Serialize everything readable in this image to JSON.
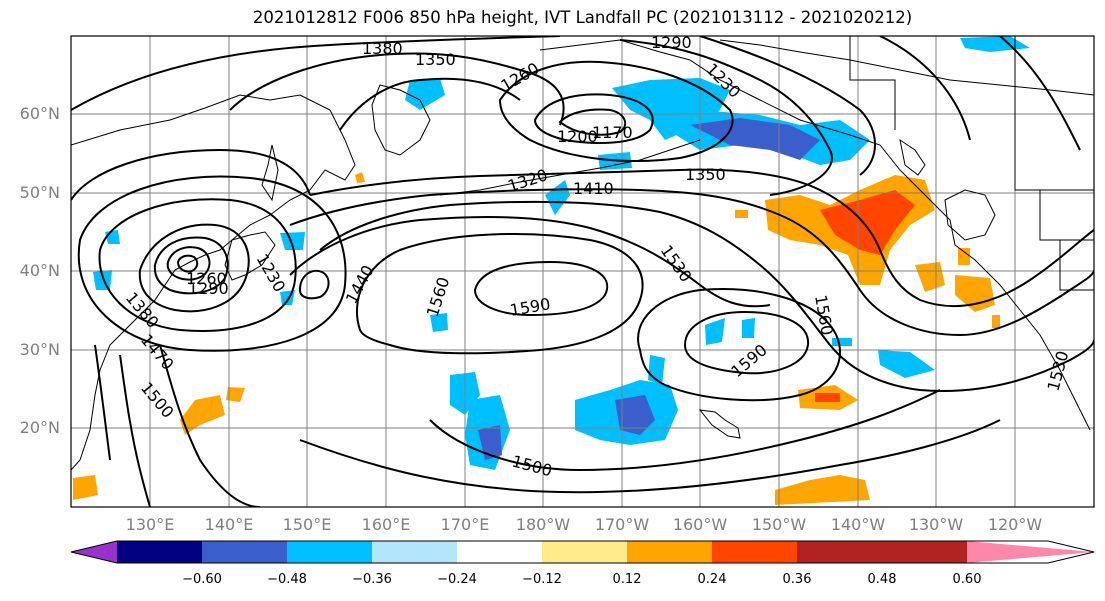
{
  "title": "2021012812 F006 850 hPa height, IVT Landfall PC (2021013112 - 2021020212)",
  "map": {
    "lat_labels": [
      "60°N",
      "50°N",
      "40°N",
      "30°N",
      "20°N"
    ],
    "lon_labels": [
      "130°E",
      "140°E",
      "150°E",
      "160°E",
      "170°E",
      "180°W",
      "170°W",
      "160°W",
      "150°W",
      "140°W",
      "130°W",
      "120°W"
    ],
    "contour_labels": [
      "1380",
      "1350",
      "1290",
      "1260",
      "1230",
      "1200",
      "1170",
      "1320",
      "1410",
      "1350",
      "1260",
      "1290",
      "1230",
      "1440",
      "1560",
      "1590",
      "1530",
      "1560",
      "1590",
      "1530",
      "1500",
      "1500",
      "1470",
      "1380"
    ],
    "colors": {
      "contour": "#000000",
      "grid": "#808080",
      "land_outline": "#000000",
      "neg_light": "#b3e5fc",
      "neg_cyan": "#00bfff",
      "neg_blue": "#3a5fcd",
      "pos_yellow": "#ffeb8a",
      "pos_orange": "#ffa500",
      "pos_red": "#ff4500"
    }
  },
  "colorbar": {
    "colors": [
      "#9932cc",
      "#000080",
      "#3a5fcd",
      "#00bfff",
      "#b3e5fc",
      "#ffffff",
      "#ffeb8a",
      "#ffa500",
      "#ff4500",
      "#b22222",
      "#ff88aa"
    ],
    "labels": [
      "−0.60",
      "−0.48",
      "−0.36",
      "−0.24",
      "−0.12",
      "0.12",
      "0.24",
      "0.36",
      "0.48",
      "0.60"
    ]
  }
}
